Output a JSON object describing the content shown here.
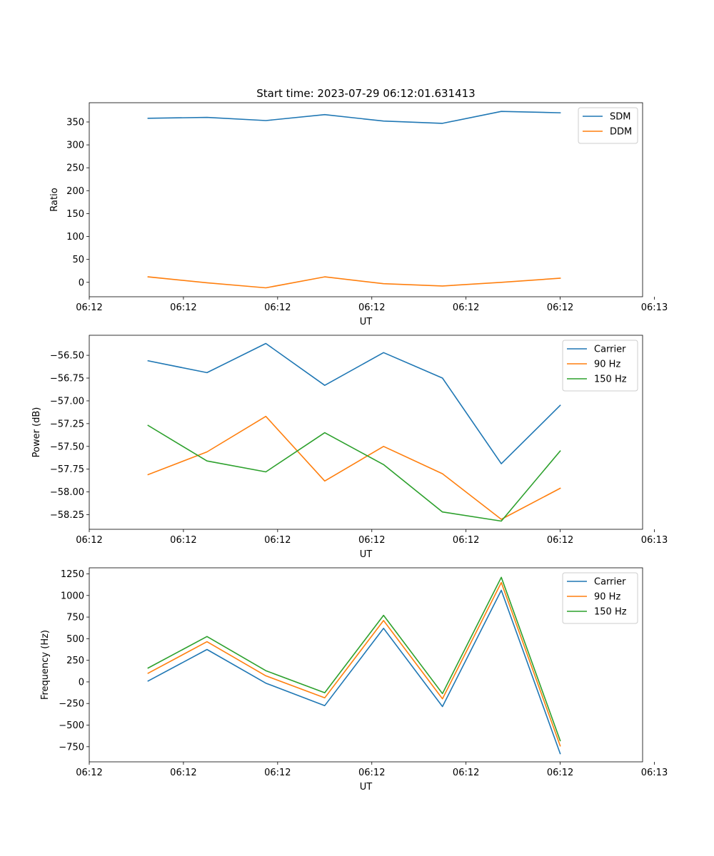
{
  "figure_title": "Start time: 2023-07-29 06:12:01.631413",
  "colors": {
    "blue": "#1f77b4",
    "orange": "#ff7f0e",
    "green": "#2ca02c"
  },
  "chart_data": [
    {
      "type": "line",
      "title": "Start time: 2023-07-29 06:12:01.631413",
      "xlabel": "UT",
      "ylabel": "Ratio",
      "x": [
        0.5,
        1.0,
        1.5,
        2.0,
        2.5,
        3.0,
        3.5,
        4.0
      ],
      "xlim": [
        0.0,
        4.7
      ],
      "x_ticks": [
        0.0,
        0.8,
        1.6,
        2.4,
        3.2,
        4.0,
        4.8
      ],
      "x_tick_labels": [
        "06:12",
        "06:12",
        "06:12",
        "06:12",
        "06:12",
        "06:12",
        "06:13"
      ],
      "ylim": [
        -31.5,
        392
      ],
      "y_ticks": [
        0,
        50,
        100,
        150,
        200,
        250,
        300,
        350
      ],
      "y_tick_labels": [
        "0",
        "50",
        "100",
        "150",
        "200",
        "250",
        "300",
        "350"
      ],
      "legend_position": "top-right",
      "series": [
        {
          "name": "SDM",
          "color": "#1f77b4",
          "values": [
            358,
            360,
            353,
            366,
            352,
            347,
            373,
            370
          ]
        },
        {
          "name": "DDM",
          "color": "#ff7f0e",
          "values": [
            12,
            -1,
            -12,
            12,
            -3,
            -8,
            0,
            9
          ]
        }
      ]
    },
    {
      "type": "line",
      "title": "",
      "xlabel": "UT",
      "ylabel": "Power (dB)",
      "x": [
        0.5,
        1.0,
        1.5,
        2.0,
        2.5,
        3.0,
        3.5,
        4.0
      ],
      "xlim": [
        0.0,
        4.7
      ],
      "x_ticks": [
        0.0,
        0.8,
        1.6,
        2.4,
        3.2,
        4.0,
        4.8
      ],
      "x_tick_labels": [
        "06:12",
        "06:12",
        "06:12",
        "06:12",
        "06:12",
        "06:12",
        "06:13"
      ],
      "ylim": [
        -58.41,
        -56.28
      ],
      "y_ticks": [
        -58.25,
        -58.0,
        -57.75,
        -57.5,
        -57.25,
        -57.0,
        -56.75,
        -56.5
      ],
      "y_tick_labels": [
        "−58.25",
        "−58.00",
        "−57.75",
        "−57.50",
        "−57.25",
        "−57.00",
        "−56.75",
        "−56.50"
      ],
      "legend_position": "top-right",
      "series": [
        {
          "name": "Carrier",
          "color": "#1f77b4",
          "values": [
            -56.56,
            -56.69,
            -56.37,
            -56.83,
            -56.47,
            -56.75,
            -57.69,
            -57.05
          ]
        },
        {
          "name": "90 Hz",
          "color": "#ff7f0e",
          "values": [
            -57.81,
            -57.56,
            -57.17,
            -57.88,
            -57.5,
            -57.8,
            -58.3,
            -57.96
          ]
        },
        {
          "name": "150 Hz",
          "color": "#2ca02c",
          "values": [
            -57.27,
            -57.66,
            -57.78,
            -57.35,
            -57.7,
            -58.22,
            -58.32,
            -57.55
          ]
        }
      ]
    },
    {
      "type": "line",
      "title": "",
      "xlabel": "UT",
      "ylabel": "Frequency (Hz)",
      "x": [
        0.5,
        1.0,
        1.5,
        2.0,
        2.5,
        3.0,
        3.5,
        4.0
      ],
      "xlim": [
        0.0,
        4.7
      ],
      "x_ticks": [
        0.0,
        0.8,
        1.6,
        2.4,
        3.2,
        4.0,
        4.8
      ],
      "x_tick_labels": [
        "06:12",
        "06:12",
        "06:12",
        "06:12",
        "06:12",
        "06:12",
        "06:13"
      ],
      "ylim": [
        -925,
        1320
      ],
      "y_ticks": [
        -750,
        -500,
        -250,
        0,
        250,
        500,
        750,
        1000,
        1250
      ],
      "y_tick_labels": [
        "−750",
        "−500",
        "−250",
        "0",
        "250",
        "500",
        "750",
        "1000",
        "1250"
      ],
      "legend_position": "top-right",
      "series": [
        {
          "name": "Carrier",
          "color": "#1f77b4",
          "values": [
            10,
            375,
            -15,
            -275,
            620,
            -285,
            1060,
            -830
          ]
        },
        {
          "name": "90 Hz",
          "color": "#ff7f0e",
          "values": [
            100,
            465,
            70,
            -185,
            710,
            -195,
            1150,
            -740
          ]
        },
        {
          "name": "150 Hz",
          "color": "#2ca02c",
          "values": [
            160,
            525,
            130,
            -125,
            770,
            -135,
            1210,
            -680
          ]
        }
      ]
    }
  ]
}
